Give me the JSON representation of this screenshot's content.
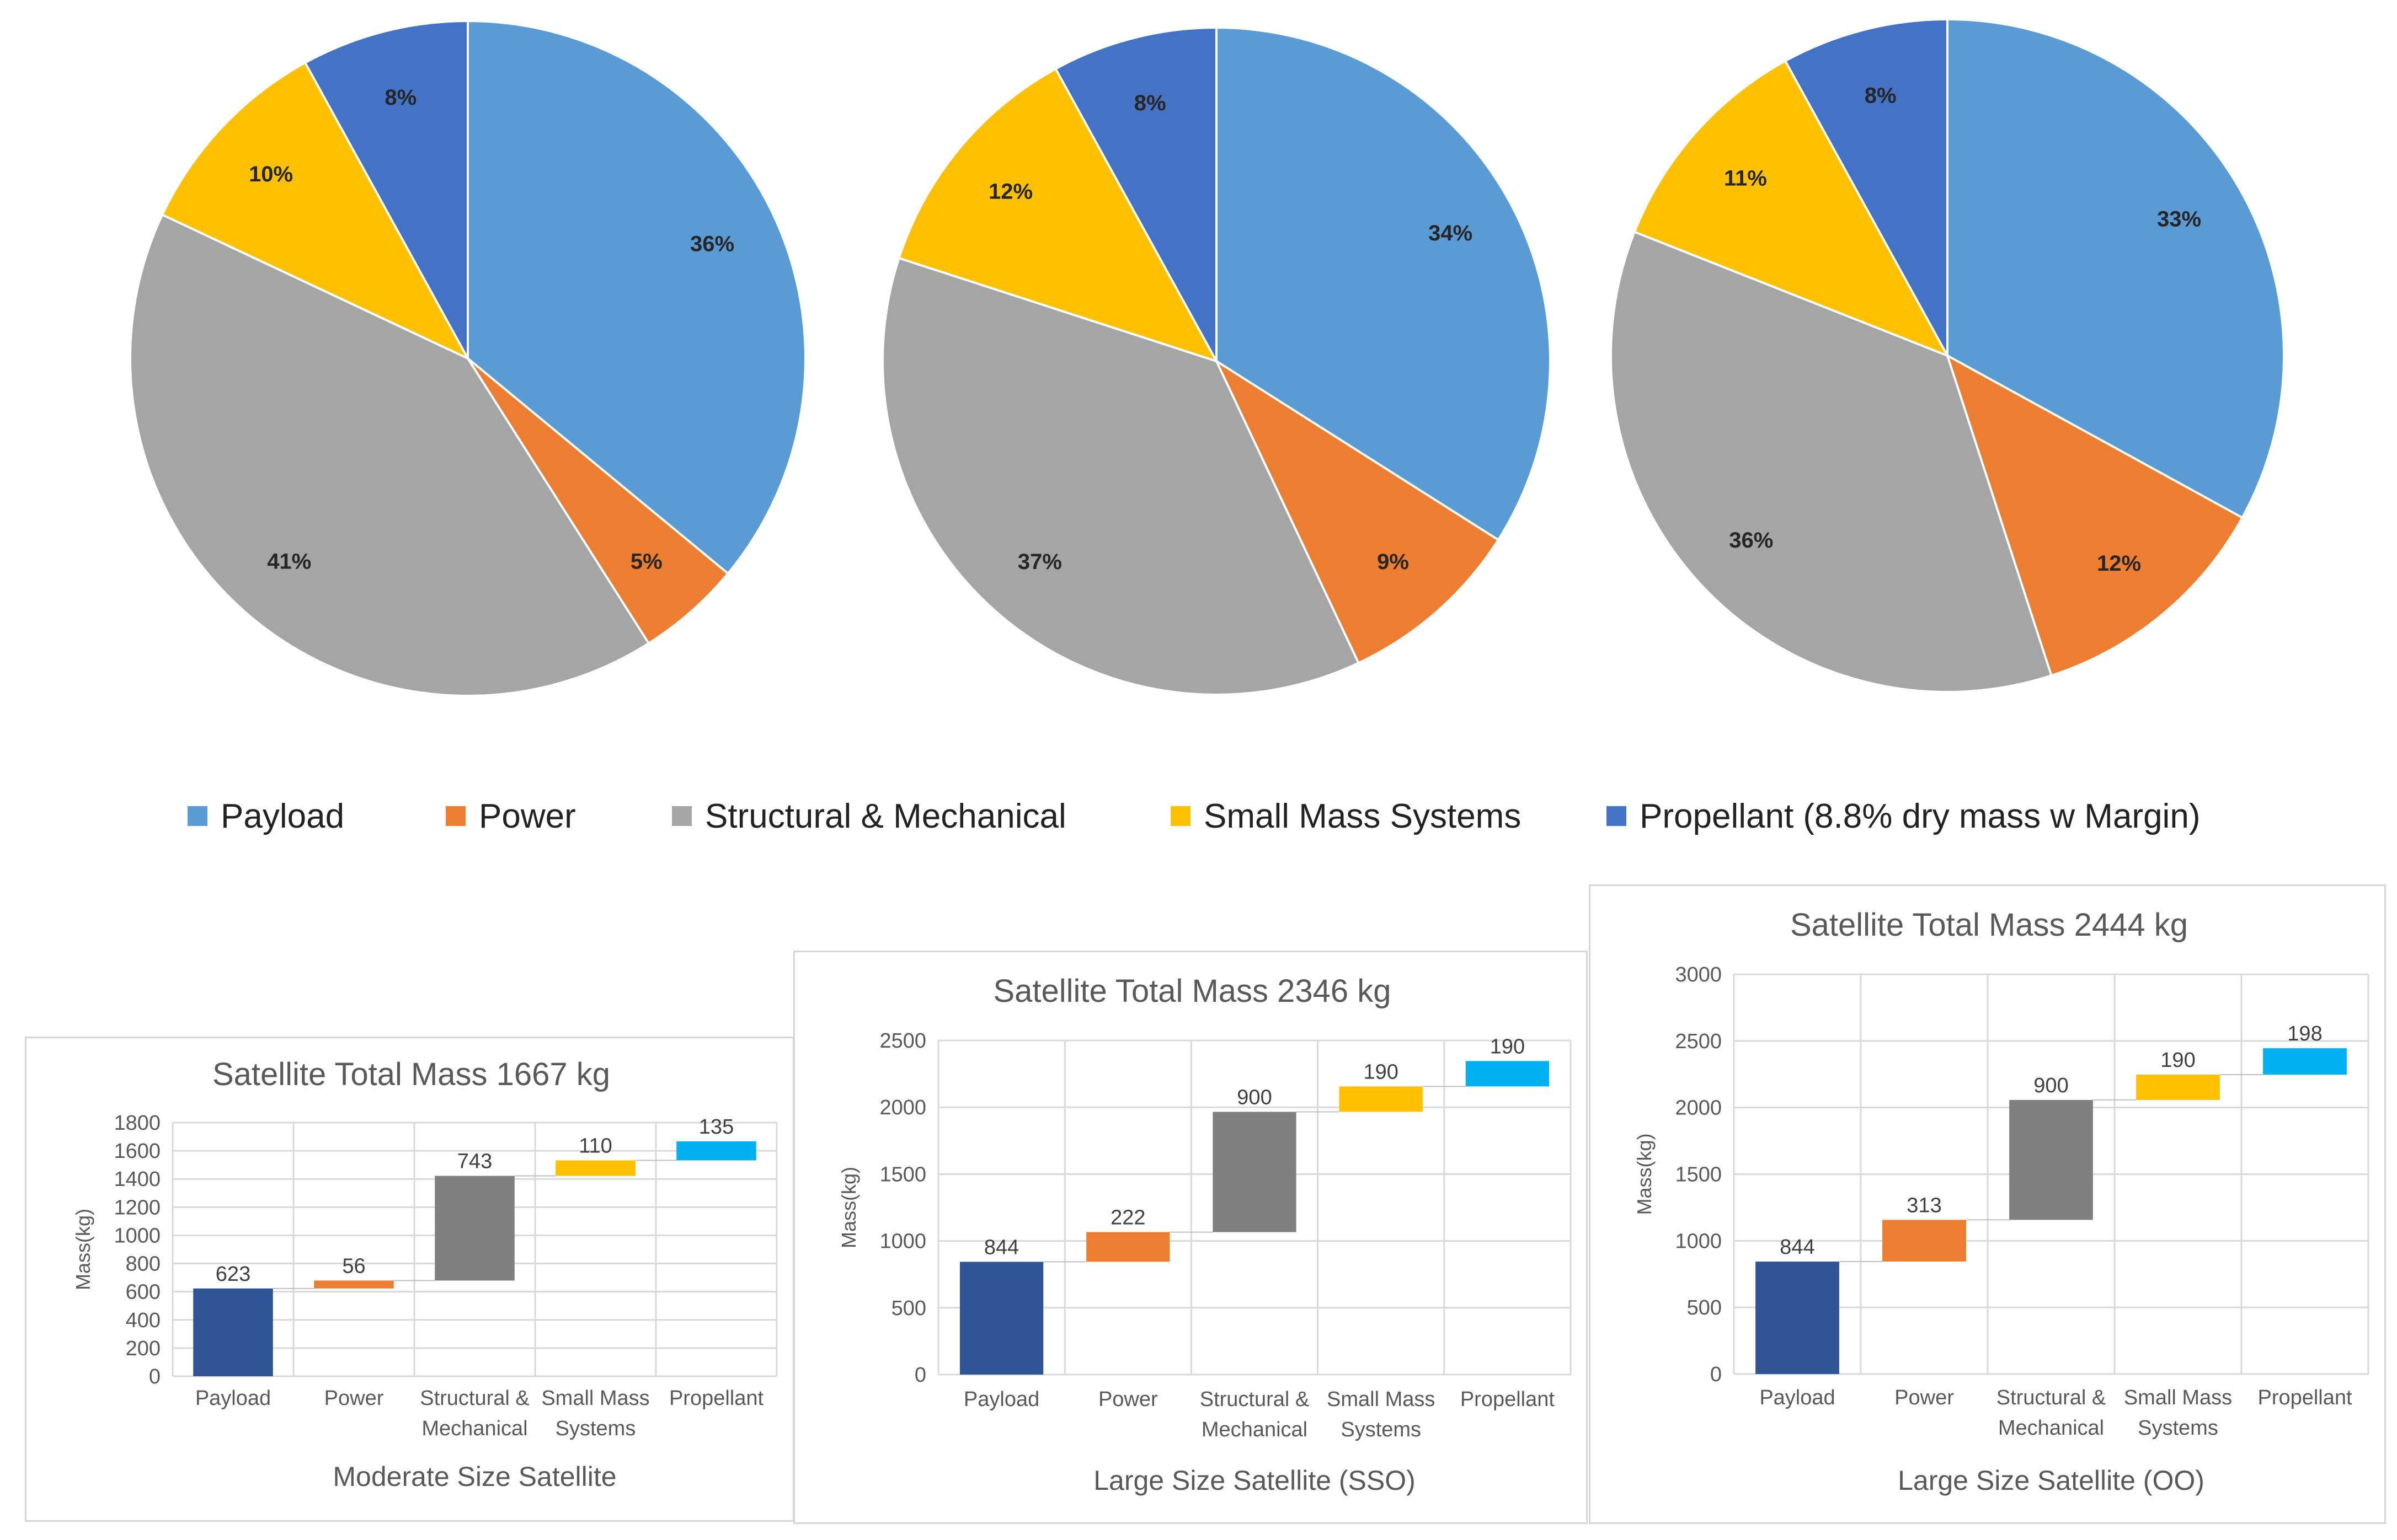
{
  "legend": [
    {
      "label": "Payload",
      "color": "#5B9BD5"
    },
    {
      "label": "Power",
      "color": "#ED7D31"
    },
    {
      "label": "Structural & Mechanical",
      "color": "#A5A5A5"
    },
    {
      "label": "Small Mass Systems",
      "color": "#FFC000"
    },
    {
      "label": "Propellant (8.8% dry mass w Margin)",
      "color": "#4472C4"
    }
  ],
  "chart_data": [
    {
      "type": "pie",
      "title": "",
      "labels": [
        "Payload",
        "Power",
        "Structural & Mechanical",
        "Small Mass Systems",
        "Propellant (8.8% dry mass w Margin)"
      ],
      "values": [
        36,
        5,
        41,
        10,
        8
      ],
      "data_labels": [
        "36%",
        "5%",
        "41%",
        "10%",
        "8%"
      ]
    },
    {
      "type": "pie",
      "title": "",
      "labels": [
        "Payload",
        "Power",
        "Structural & Mechanical",
        "Small Mass Systems",
        "Propellant (8.8% dry mass w Margin)"
      ],
      "values": [
        34,
        9,
        37,
        12,
        8
      ],
      "data_labels": [
        "34%",
        "9%",
        "37%",
        "12%",
        "8%"
      ]
    },
    {
      "type": "pie",
      "title": "",
      "labels": [
        "Payload",
        "Power",
        "Structural & Mechanical",
        "Small Mass Systems",
        "Propellant (8.8% dry mass w Margin)"
      ],
      "values": [
        33,
        12,
        36,
        11,
        8
      ],
      "data_labels": [
        "33%",
        "12%",
        "36%",
        "11%",
        "8%"
      ]
    },
    {
      "type": "waterfall",
      "title": "Satellite Total Mass 1667 kg",
      "xlabel": "Moderate Size Satellite",
      "ylabel": "Mass(kg)",
      "categories": [
        [
          "Payload"
        ],
        [
          "Power"
        ],
        [
          "Structural &",
          "Mechanical"
        ],
        [
          "Small Mass",
          "Systems"
        ],
        [
          "Propellant"
        ]
      ],
      "values": [
        623,
        56,
        743,
        110,
        135
      ],
      "ylim": [
        0,
        1800
      ],
      "yticks": [
        0,
        200,
        400,
        600,
        800,
        1000,
        1200,
        1400,
        1600,
        1800
      ],
      "colors": [
        "#2F5597",
        "#ED7D31",
        "#7F7F7F",
        "#FFC000",
        "#00B0F0"
      ]
    },
    {
      "type": "waterfall",
      "title": "Satellite Total Mass 2346 kg",
      "xlabel": "Large Size Satellite (SSO)",
      "ylabel": "Mass(kg)",
      "categories": [
        [
          "Payload"
        ],
        [
          "Power"
        ],
        [
          "Structural &",
          "Mechanical"
        ],
        [
          "Small Mass",
          "Systems"
        ],
        [
          "Propellant"
        ]
      ],
      "values": [
        844,
        222,
        900,
        190,
        190
      ],
      "ylim": [
        0,
        2500
      ],
      "yticks": [
        0,
        500,
        1000,
        1500,
        2000,
        2500
      ],
      "colors": [
        "#2F5597",
        "#ED7D31",
        "#7F7F7F",
        "#FFC000",
        "#00B0F0"
      ]
    },
    {
      "type": "waterfall",
      "title": "Satellite Total Mass 2444 kg",
      "xlabel": "Large Size Satellite (OO)",
      "ylabel": "Mass(kg)",
      "categories": [
        [
          "Payload"
        ],
        [
          "Power"
        ],
        [
          "Structural &",
          "Mechanical"
        ],
        [
          "Small Mass",
          "Systems"
        ],
        [
          "Propellant"
        ]
      ],
      "values": [
        844,
        313,
        900,
        190,
        198
      ],
      "ylim": [
        0,
        3000
      ],
      "yticks": [
        0,
        500,
        1000,
        1500,
        2000,
        2500,
        3000
      ],
      "colors": [
        "#2F5597",
        "#ED7D31",
        "#7F7F7F",
        "#FFC000",
        "#00B0F0"
      ]
    }
  ]
}
